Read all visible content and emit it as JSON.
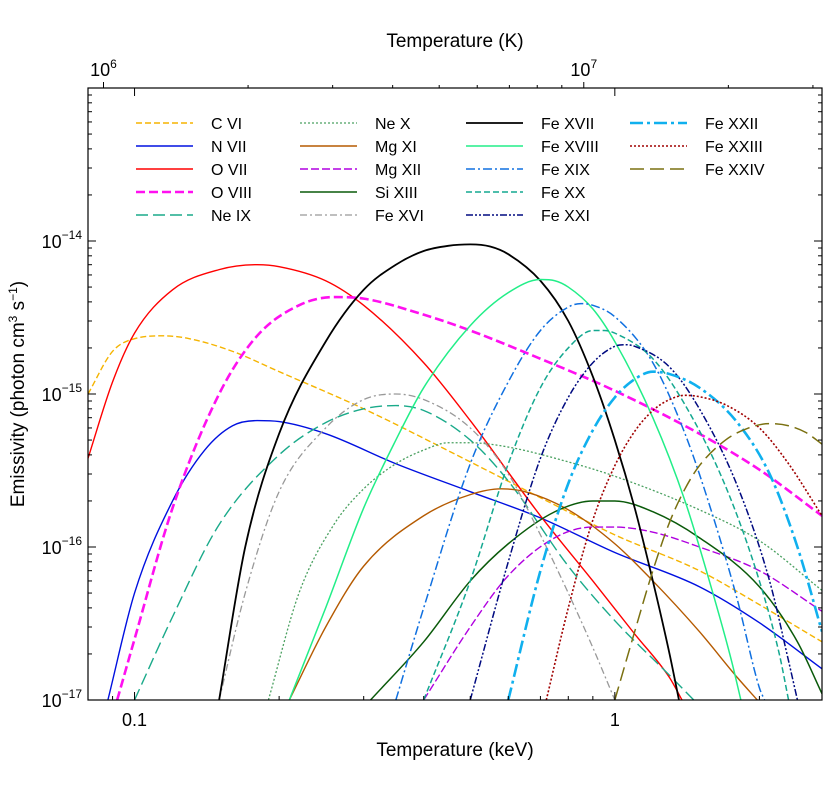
{
  "chart_data": {
    "type": "line",
    "xlabel": "Temperature (keV)",
    "xlabel_top": "Temperature (K)",
    "ylabel": "Emissivity (photon cm",
    "ylabel_sup1": "3",
    "ylabel_mid": " s",
    "ylabel_sup2": "−1",
    "ylabel_end": ")",
    "x_scale": "log",
    "y_scale": "log",
    "xlim": [
      0.08,
      2.7
    ],
    "ylim": [
      1e-17,
      1e-13
    ],
    "x_ticks": [
      {
        "value": 0.1,
        "label": "0.1"
      },
      {
        "value": 1,
        "label": "1"
      }
    ],
    "x_top_ticks": [
      {
        "value": 0.08617,
        "base": "10",
        "exp": "6"
      },
      {
        "value": 0.8617,
        "base": "10",
        "exp": "7"
      }
    ],
    "y_ticks": [
      {
        "value": 1e-17,
        "base": "10",
        "exp": "−17"
      },
      {
        "value": 1e-16,
        "base": "10",
        "exp": "−16"
      },
      {
        "value": 1e-15,
        "base": "10",
        "exp": "−15"
      },
      {
        "value": 1e-14,
        "base": "10",
        "exp": "−14"
      }
    ],
    "legend_position": "top",
    "grid": false,
    "series": [
      {
        "name": "C VI",
        "color": "#f5b400",
        "dash": "6,3",
        "width": 1.4,
        "points": [
          [
            0.08,
            1e-15
          ],
          [
            0.09,
            1.9e-15
          ],
          [
            0.1,
            2.3e-15
          ],
          [
            0.115,
            2.4e-15
          ],
          [
            0.13,
            2.3e-15
          ],
          [
            0.16,
            1.9e-15
          ],
          [
            0.2,
            1.4e-15
          ],
          [
            0.3,
            8e-16
          ],
          [
            0.5,
            3.6e-16
          ],
          [
            0.7,
            2.1e-16
          ],
          [
            1.0,
            1.2e-16
          ],
          [
            1.5,
            7e-17
          ],
          [
            2.0,
            4.2e-17
          ],
          [
            2.7,
            2.4e-17
          ]
        ]
      },
      {
        "name": "N VII",
        "color": "#0010e0",
        "dash": "",
        "width": 1.4,
        "points": [
          [
            0.088,
            1e-17
          ],
          [
            0.1,
            5e-17
          ],
          [
            0.12,
            2e-16
          ],
          [
            0.14,
            4.3e-16
          ],
          [
            0.16,
            6.2e-16
          ],
          [
            0.18,
            6.7e-16
          ],
          [
            0.2,
            6.6e-16
          ],
          [
            0.25,
            5.5e-16
          ],
          [
            0.35,
            3.5e-16
          ],
          [
            0.5,
            2.3e-16
          ],
          [
            0.7,
            1.55e-16
          ],
          [
            1.0,
            9.2e-17
          ],
          [
            1.5,
            5.5e-17
          ],
          [
            2.0,
            3.2e-17
          ],
          [
            2.7,
            1.6e-17
          ]
        ]
      },
      {
        "name": "O VII",
        "color": "#ff0000",
        "dash": "",
        "width": 1.4,
        "points": [
          [
            0.08,
            3.8e-16
          ],
          [
            0.09,
            1.2e-15
          ],
          [
            0.1,
            2.5e-15
          ],
          [
            0.12,
            4.8e-15
          ],
          [
            0.15,
            6.5e-15
          ],
          [
            0.18,
            7e-15
          ],
          [
            0.2,
            6.8e-15
          ],
          [
            0.25,
            5.5e-15
          ],
          [
            0.3,
            3.8e-15
          ],
          [
            0.4,
            1.6e-15
          ],
          [
            0.5,
            6.7e-16
          ],
          [
            0.7,
            1.6e-16
          ],
          [
            0.9,
            6e-17
          ],
          [
            1.1,
            2.7e-17
          ],
          [
            1.3,
            1.4e-17
          ],
          [
            1.38,
            1e-17
          ]
        ]
      },
      {
        "name": "O VIII",
        "color": "#ff10f0",
        "dash": "9,4",
        "width": 2.6,
        "points": [
          [
            0.092,
            1e-17
          ],
          [
            0.1,
            2.5e-17
          ],
          [
            0.12,
            1.8e-16
          ],
          [
            0.15,
            1e-15
          ],
          [
            0.18,
            2.4e-15
          ],
          [
            0.22,
            3.8e-15
          ],
          [
            0.26,
            4.3e-15
          ],
          [
            0.3,
            4.2e-15
          ],
          [
            0.4,
            3.3e-15
          ],
          [
            0.5,
            2.6e-15
          ],
          [
            0.7,
            1.7e-15
          ],
          [
            1.0,
            1.05e-15
          ],
          [
            1.5,
            5.5e-16
          ],
          [
            2.0,
            3.2e-16
          ],
          [
            2.7,
            1.6e-16
          ]
        ]
      },
      {
        "name": "Ne IX",
        "color": "#1aaa8a",
        "dash": "12,5",
        "width": 1.4,
        "points": [
          [
            0.1,
            1e-17
          ],
          [
            0.12,
            3.5e-17
          ],
          [
            0.15,
            1.4e-16
          ],
          [
            0.2,
            4e-16
          ],
          [
            0.25,
            6.5e-16
          ],
          [
            0.3,
            8e-16
          ],
          [
            0.35,
            8.4e-16
          ],
          [
            0.4,
            7.8e-16
          ],
          [
            0.5,
            5e-16
          ],
          [
            0.6,
            2.7e-16
          ],
          [
            0.8,
            7.5e-17
          ],
          [
            1.0,
            3.3e-17
          ],
          [
            1.3,
            1.45e-17
          ],
          [
            1.46,
            1e-17
          ]
        ]
      },
      {
        "name": "Ne X",
        "color": "#4aa060",
        "dash": "2,2",
        "width": 1.3,
        "points": [
          [
            0.19,
            1e-17
          ],
          [
            0.22,
            5e-17
          ],
          [
            0.26,
            1.4e-16
          ],
          [
            0.3,
            2.4e-16
          ],
          [
            0.35,
            3.5e-16
          ],
          [
            0.4,
            4.3e-16
          ],
          [
            0.45,
            4.8e-16
          ],
          [
            0.5,
            4.8e-16
          ],
          [
            0.6,
            4.5e-16
          ],
          [
            0.8,
            3.6e-16
          ],
          [
            1.0,
            2.9e-16
          ],
          [
            1.5,
            1.75e-16
          ],
          [
            2.0,
            1.1e-16
          ],
          [
            2.7,
            5.2e-17
          ]
        ]
      },
      {
        "name": "Mg XI",
        "color": "#b55a00",
        "dash": "",
        "width": 1.4,
        "points": [
          [
            0.21,
            1e-17
          ],
          [
            0.25,
            3e-17
          ],
          [
            0.3,
            7.5e-17
          ],
          [
            0.4,
            1.6e-16
          ],
          [
            0.5,
            2.2e-16
          ],
          [
            0.58,
            2.4e-16
          ],
          [
            0.65,
            2.3e-16
          ],
          [
            0.8,
            1.75e-16
          ],
          [
            1.0,
            1.05e-16
          ],
          [
            1.2,
            6e-17
          ],
          [
            1.5,
            2.8e-17
          ],
          [
            1.8,
            1.4e-17
          ],
          [
            1.98,
            1e-17
          ]
        ]
      },
      {
        "name": "Mg XII",
        "color": "#b000e0",
        "dash": "8,3",
        "width": 1.4,
        "points": [
          [
            0.4,
            1e-17
          ],
          [
            0.5,
            3e-17
          ],
          [
            0.6,
            6.5e-17
          ],
          [
            0.75,
            1.15e-16
          ],
          [
            0.9,
            1.35e-16
          ],
          [
            1.0,
            1.35e-16
          ],
          [
            1.2,
            1.25e-16
          ],
          [
            1.5,
            1e-16
          ],
          [
            2.0,
            7e-17
          ],
          [
            2.7,
            3.8e-17
          ]
        ]
      },
      {
        "name": "Si XIII",
        "color": "#0a5a0a",
        "dash": "",
        "width": 1.5,
        "points": [
          [
            0.31,
            1e-17
          ],
          [
            0.4,
            2.4e-17
          ],
          [
            0.5,
            6e-17
          ],
          [
            0.6,
            1.05e-16
          ],
          [
            0.75,
            1.7e-16
          ],
          [
            0.9,
            2e-16
          ],
          [
            1.0,
            2e-16
          ],
          [
            1.2,
            1.7e-16
          ],
          [
            1.5,
            1.15e-16
          ],
          [
            2.0,
            5.5e-17
          ],
          [
            2.4,
            2.4e-17
          ],
          [
            2.7,
            1.1e-17
          ]
        ]
      },
      {
        "name": "Fe XVI",
        "color": "#999999",
        "dash": "7,3,2,3",
        "width": 1.3,
        "points": [
          [
            0.15,
            1e-17
          ],
          [
            0.17,
            5e-17
          ],
          [
            0.2,
            2.3e-16
          ],
          [
            0.25,
            6e-16
          ],
          [
            0.3,
            9.2e-16
          ],
          [
            0.35,
            1e-15
          ],
          [
            0.4,
            9.2e-16
          ],
          [
            0.5,
            6e-16
          ],
          [
            0.6,
            3e-16
          ],
          [
            0.7,
            1.2e-16
          ],
          [
            0.8,
            5e-17
          ],
          [
            0.9,
            2.2e-17
          ],
          [
            1.0,
            1e-17
          ]
        ]
      },
      {
        "name": "Fe XVII",
        "color": "#000000",
        "dash": "",
        "width": 1.8,
        "points": [
          [
            0.15,
            1e-17
          ],
          [
            0.17,
            1e-16
          ],
          [
            0.2,
            5.5e-16
          ],
          [
            0.25,
            2.2e-15
          ],
          [
            0.3,
            4.8e-15
          ],
          [
            0.35,
            7e-15
          ],
          [
            0.4,
            8.6e-15
          ],
          [
            0.45,
            9.3e-15
          ],
          [
            0.5,
            9.5e-15
          ],
          [
            0.55,
            9.2e-15
          ],
          [
            0.6,
            8.2e-15
          ],
          [
            0.7,
            5.5e-15
          ],
          [
            0.8,
            3e-15
          ],
          [
            0.9,
            1.3e-15
          ],
          [
            1.0,
            5e-16
          ],
          [
            1.1,
            1.8e-16
          ],
          [
            1.2,
            6e-17
          ],
          [
            1.3,
            2e-17
          ],
          [
            1.36,
            1e-17
          ]
        ]
      },
      {
        "name": "Fe XVIII",
        "color": "#22ee88",
        "dash": "",
        "width": 1.5,
        "points": [
          [
            0.21,
            1e-17
          ],
          [
            0.25,
            4e-17
          ],
          [
            0.3,
            1.8e-16
          ],
          [
            0.35,
            5e-16
          ],
          [
            0.4,
            1.1e-15
          ],
          [
            0.5,
            2.8e-15
          ],
          [
            0.6,
            4.6e-15
          ],
          [
            0.7,
            5.6e-15
          ],
          [
            0.75,
            5.5e-15
          ],
          [
            0.8,
            5e-15
          ],
          [
            0.9,
            3.6e-15
          ],
          [
            1.0,
            2.2e-15
          ],
          [
            1.2,
            7e-16
          ],
          [
            1.4,
            2e-16
          ],
          [
            1.6,
            5e-17
          ],
          [
            1.75,
            1.8e-17
          ],
          [
            1.83,
            1e-17
          ]
        ]
      },
      {
        "name": "Fe XIX",
        "color": "#1070e0",
        "dash": "9,3,2,3",
        "width": 1.5,
        "points": [
          [
            0.35,
            1e-17
          ],
          [
            0.4,
            4e-17
          ],
          [
            0.5,
            3.5e-16
          ],
          [
            0.6,
            1.2e-15
          ],
          [
            0.7,
            2.6e-15
          ],
          [
            0.8,
            3.7e-15
          ],
          [
            0.85,
            3.9e-15
          ],
          [
            0.9,
            3.8e-15
          ],
          [
            1.0,
            3.2e-15
          ],
          [
            1.2,
            1.6e-15
          ],
          [
            1.4,
            5.5e-16
          ],
          [
            1.6,
            1.6e-16
          ],
          [
            1.8,
            4.5e-17
          ],
          [
            2.0,
            1.2e-17
          ],
          [
            2.05,
            1e-17
          ]
        ]
      },
      {
        "name": "Fe XX",
        "color": "#14a890",
        "dash": "6,3",
        "width": 1.5,
        "points": [
          [
            0.4,
            1e-17
          ],
          [
            0.5,
            6e-17
          ],
          [
            0.6,
            3.5e-16
          ],
          [
            0.7,
            1.1e-15
          ],
          [
            0.8,
            2e-15
          ],
          [
            0.9,
            2.6e-15
          ],
          [
            0.95,
            2.6e-15
          ],
          [
            1.0,
            2.5e-15
          ],
          [
            1.2,
            1.7e-15
          ],
          [
            1.4,
            8.5e-16
          ],
          [
            1.7,
            2.5e-16
          ],
          [
            2.0,
            6e-17
          ],
          [
            2.2,
            2e-17
          ],
          [
            2.3,
            1e-17
          ]
        ]
      },
      {
        "name": "Fe XXI",
        "color": "#000a80",
        "dash": "7,2,2,2,2,2",
        "width": 1.5,
        "points": [
          [
            0.5,
            1e-17
          ],
          [
            0.6,
            8e-17
          ],
          [
            0.7,
            3.8e-16
          ],
          [
            0.8,
            9.5e-16
          ],
          [
            0.9,
            1.6e-15
          ],
          [
            1.0,
            2.05e-15
          ],
          [
            1.05,
            2.1e-15
          ],
          [
            1.1,
            2.05e-15
          ],
          [
            1.3,
            1.5e-15
          ],
          [
            1.5,
            8e-16
          ],
          [
            1.8,
            2.5e-16
          ],
          [
            2.1,
            6e-17
          ],
          [
            2.3,
            1.8e-17
          ],
          [
            2.4,
            1e-17
          ]
        ]
      },
      {
        "name": "Fe XXII",
        "color": "#10b0ee",
        "dash": "13,4,3,4",
        "width": 2.6,
        "points": [
          [
            0.6,
            1e-17
          ],
          [
            0.7,
            7e-17
          ],
          [
            0.8,
            2.6e-16
          ],
          [
            0.9,
            5.8e-16
          ],
          [
            1.0,
            9.5e-16
          ],
          [
            1.1,
            1.25e-15
          ],
          [
            1.2,
            1.4e-15
          ],
          [
            1.3,
            1.35e-15
          ],
          [
            1.5,
            1.1e-15
          ],
          [
            1.8,
            6.5e-16
          ],
          [
            2.1,
            3e-16
          ],
          [
            2.4,
            1e-16
          ],
          [
            2.7,
            2.8e-17
          ]
        ]
      },
      {
        "name": "Fe XXIII",
        "color": "#a00000",
        "dash": "2,2",
        "width": 1.6,
        "points": [
          [
            0.72,
            1e-17
          ],
          [
            0.8,
            4e-17
          ],
          [
            0.9,
            1.5e-16
          ],
          [
            1.0,
            3.4e-16
          ],
          [
            1.1,
            5.7e-16
          ],
          [
            1.2,
            7.8e-16
          ],
          [
            1.3,
            9.2e-16
          ],
          [
            1.4,
            9.8e-16
          ],
          [
            1.5,
            9.6e-16
          ],
          [
            1.7,
            8.5e-16
          ],
          [
            2.0,
            6e-16
          ],
          [
            2.3,
            3.5e-16
          ],
          [
            2.7,
            1.6e-16
          ]
        ]
      },
      {
        "name": "Fe XXIV",
        "color": "#7a7010",
        "dash": "14,6",
        "width": 1.5,
        "points": [
          [
            1.0,
            1e-17
          ],
          [
            1.1,
            2.8e-17
          ],
          [
            1.2,
            7e-17
          ],
          [
            1.3,
            1.45e-16
          ],
          [
            1.4,
            2.4e-16
          ],
          [
            1.5,
            3.4e-16
          ],
          [
            1.7,
            5e-16
          ],
          [
            1.9,
            6e-16
          ],
          [
            2.1,
            6.4e-16
          ],
          [
            2.3,
            6.2e-16
          ],
          [
            2.5,
            5.6e-16
          ],
          [
            2.7,
            4.7e-16
          ]
        ]
      }
    ]
  }
}
